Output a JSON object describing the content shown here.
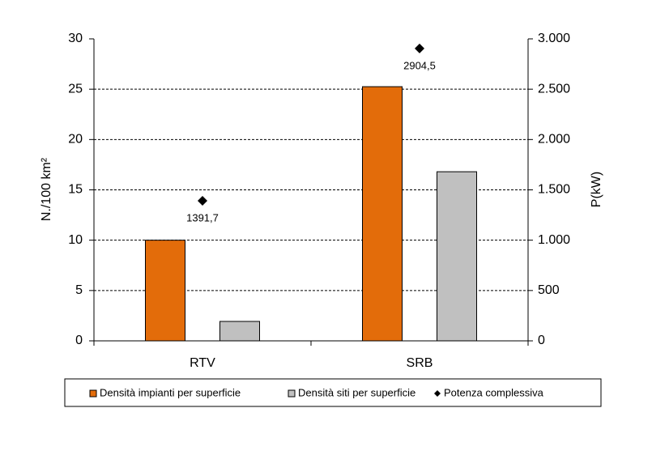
{
  "chart_data": {
    "type": "bar",
    "categories": [
      "RTV",
      "SRB"
    ],
    "y_label": "N./100 km²",
    "y2_label": "P(kW)",
    "ylim": [
      0,
      30
    ],
    "yticks": [
      0,
      5,
      10,
      15,
      20,
      25,
      30
    ],
    "y2lim": [
      0,
      3000
    ],
    "y2ticks": [
      0,
      {
        "value": 500,
        "label": "500"
      },
      {
        "value": 1000,
        "label": "1.000"
      },
      {
        "value": 1500,
        "label": "1.500"
      },
      {
        "value": 2000,
        "label": "2.000"
      },
      {
        "value": 2500,
        "label": "2.500"
      },
      {
        "value": 3000,
        "label": "3.000"
      }
    ],
    "grid": true,
    "legend": "bottom",
    "series": [
      {
        "name": "Densità impianti per superficie",
        "color": "#e36c0a",
        "values": [
          10,
          25.25
        ]
      },
      {
        "name": "Densità siti per superficie",
        "color": "#c0c0c0",
        "values": [
          1.93,
          16.8
        ]
      },
      {
        "name": "Potenza complessiva",
        "color": "#000000",
        "type": "scatter",
        "axis": "y2",
        "values": [
          1391.7,
          2904.5
        ],
        "value_labels": [
          "1391,7",
          "2904,5"
        ]
      }
    ]
  }
}
